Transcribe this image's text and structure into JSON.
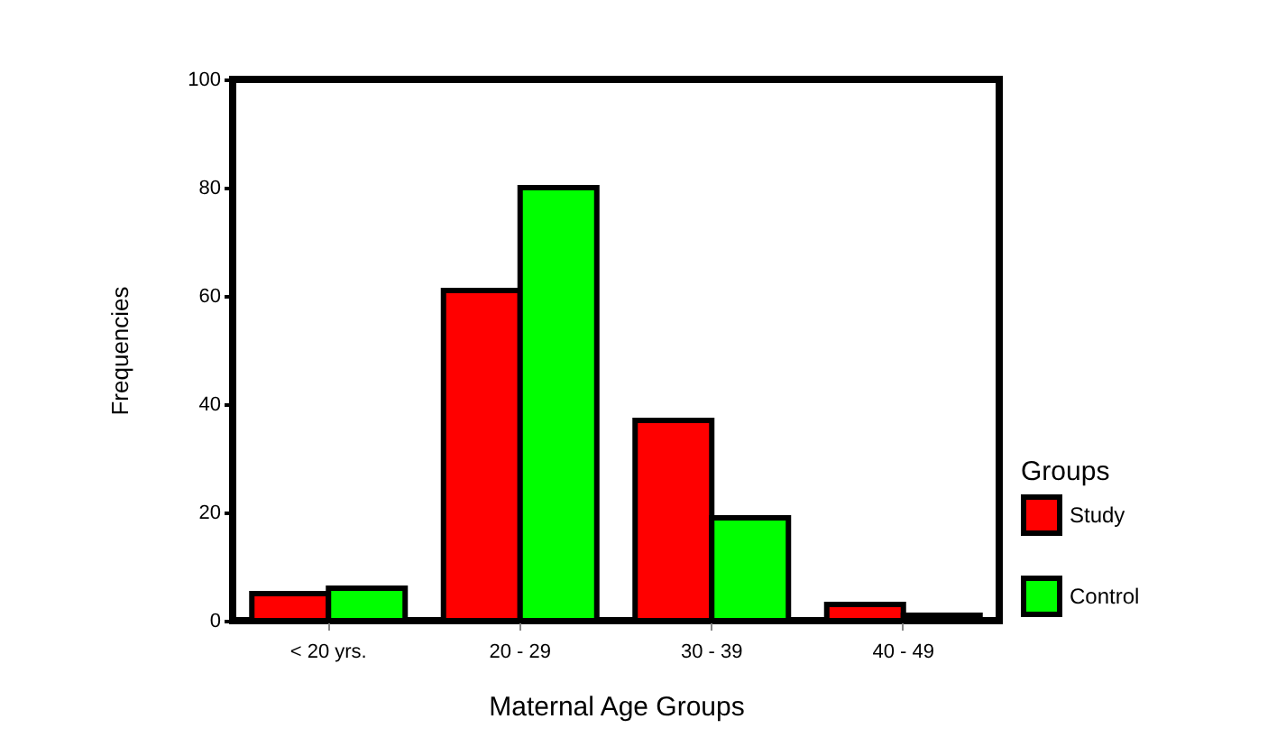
{
  "chart_data": {
    "type": "bar",
    "xlabel": "Maternal  Age Groups",
    "ylabel": "Frequencies",
    "legend_title": "Groups",
    "legend": "bottom right",
    "categories": [
      "< 20 yrs.",
      "20 - 29",
      "30 - 39",
      "40 - 49"
    ],
    "ylim": [
      0,
      100
    ],
    "yticks": [
      0,
      20,
      40,
      60,
      80,
      100
    ],
    "series": [
      {
        "name": "Study",
        "color": "#ff0000",
        "values": [
          5,
          61,
          37,
          3
        ]
      },
      {
        "name": "Control",
        "color": "#00ff00",
        "values": [
          6,
          80,
          19,
          1
        ]
      }
    ]
  }
}
